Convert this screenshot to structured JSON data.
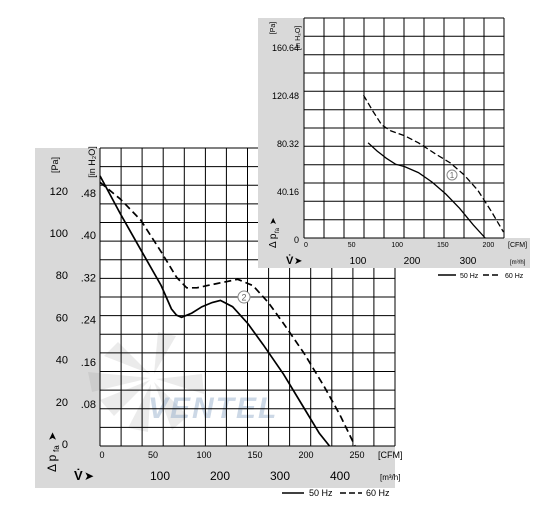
{
  "chart_data": [
    {
      "id": "main",
      "type": "line",
      "pa_unit": "[Pa]",
      "inh2o_unit": "[in H₂O]",
      "cfm_unit": "[CFM]",
      "m3h_unit": "[m³/h]",
      "y_axis_symbol": "Δ p",
      "y_axis_subscript": "fa",
      "x_axis_symbol": "V̇",
      "arrow_glyph": "➤",
      "pa_ticks": [
        "0",
        "20",
        "40",
        "60",
        "80",
        "100",
        "120"
      ],
      "inh2o_ticks": [
        ".08",
        ".16",
        ".24",
        ".32",
        ".40",
        ".48"
      ],
      "cfm_ticks": [
        "0",
        "50",
        "100",
        "150",
        "200",
        "250"
      ],
      "m3h_ticks": [
        "100",
        "200",
        "300",
        "400"
      ],
      "xlim": [
        0,
        275
      ],
      "ylim": [
        0,
        140
      ],
      "curve_marker": "2",
      "legend": {
        "a": "50 Hz",
        "b": "60 Hz",
        "position": "bottom-right"
      },
      "series": [
        {
          "name": "50 Hz",
          "style": "solid",
          "x": [
            0,
            20,
            40,
            60,
            70,
            75,
            80,
            90,
            100,
            110,
            118,
            130,
            145,
            160,
            180,
            200,
            215,
            225
          ],
          "y": [
            128,
            110,
            93,
            76,
            65,
            62,
            61,
            63,
            66,
            68,
            69,
            66,
            58,
            48,
            34,
            18,
            6,
            0
          ]
        },
        {
          "name": "60 Hz",
          "style": "dashed",
          "x": [
            0,
            20,
            40,
            60,
            75,
            85,
            95,
            105,
            115,
            125,
            135,
            150,
            165,
            180,
            200,
            220,
            235,
            250
          ],
          "y": [
            125,
            117,
            107,
            92,
            80,
            75,
            75,
            76,
            77,
            78,
            79,
            76,
            68,
            58,
            44,
            28,
            15,
            0
          ]
        }
      ]
    },
    {
      "id": "inset",
      "type": "line",
      "pa_unit": "[Pa]",
      "inh2o_unit": "[in H₂O]",
      "cfm_unit": "[CFM]",
      "m3h_unit": "[m³/h]",
      "y_axis_symbol": "Δ p",
      "y_axis_subscript": "fa",
      "x_axis_symbol": "V̇",
      "arrow_glyph": "➤",
      "pa_ticks": [
        "40",
        "80",
        "120",
        "160"
      ],
      "inh2o_ticks": [
        "0",
        ".16",
        ".32",
        ".48",
        ".64"
      ],
      "cfm_ticks": [
        "0",
        "50",
        "100",
        "150",
        "200"
      ],
      "m3h_ticks": [
        "100",
        "200",
        "300"
      ],
      "xlim": [
        0,
        225
      ],
      "ylim": [
        0,
        175
      ],
      "curve_marker": "1",
      "legend": {
        "a": "50 Hz",
        "b": "60 Hz",
        "position": "bottom-right"
      },
      "series": [
        {
          "name": "50 Hz",
          "style": "solid",
          "x": [
            70,
            80,
            90,
            100,
            110,
            125,
            140,
            155,
            170,
            185,
            198
          ],
          "y": [
            80,
            73,
            67,
            62,
            60,
            55,
            47,
            37,
            25,
            11,
            0
          ]
        },
        {
          "name": "60 Hz",
          "style": "dashed",
          "x": [
            65,
            75,
            85,
            95,
            110,
            125,
            145,
            160,
            175,
            190,
            205,
            218
          ],
          "y": [
            120,
            107,
            95,
            90,
            86,
            80,
            70,
            63,
            53,
            40,
            22,
            5
          ]
        }
      ]
    }
  ],
  "watermark": "VENTEL"
}
